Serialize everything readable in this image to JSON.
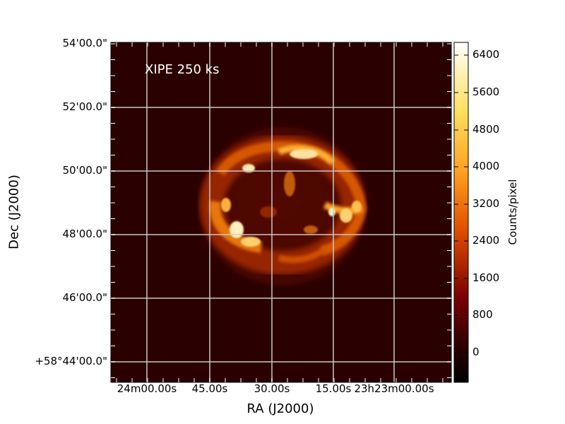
{
  "image": {
    "annotation": "XIPE 250 ks",
    "y_axis_title": "Dec (J2000)",
    "x_axis_title": "RA (J2000)",
    "y_ticks": [
      "54'00.0\"",
      "52'00.0\"",
      "50'00.0\"",
      "48'00.0\"",
      "46'00.0\"",
      "+58°44'00.0\""
    ],
    "x_ticks": [
      "24m00.00s",
      "45.00s",
      "30.00s",
      "15.00s",
      "23h23m00.00s"
    ],
    "colorbar": {
      "title": "Counts/pixel",
      "ticks": [
        "6400",
        "5600",
        "4800",
        "4000",
        "3200",
        "2400",
        "1600",
        "800",
        "0"
      ],
      "colormap": "afmhot"
    },
    "colors": {
      "background": "#2a0000",
      "grid": "#c8c8c8"
    }
  }
}
